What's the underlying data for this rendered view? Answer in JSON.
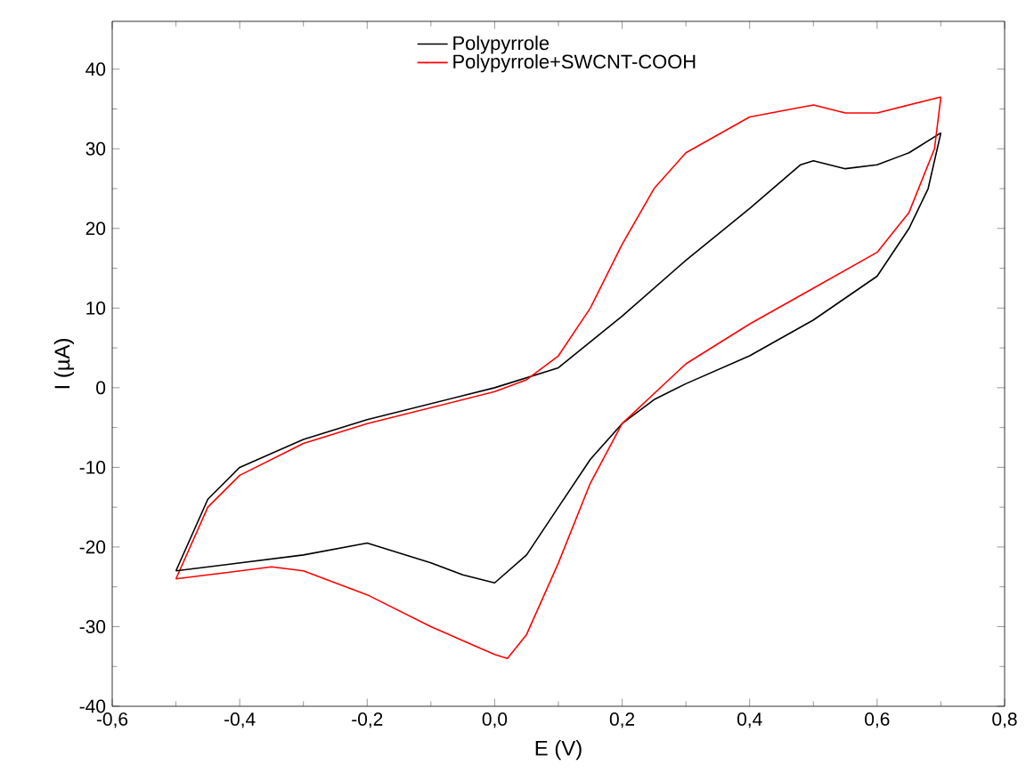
{
  "chart_data": {
    "type": "line",
    "xlabel": "E (V)",
    "ylabel": "I (µA)",
    "xlim": [
      -0.6,
      0.8
    ],
    "ylim": [
      -40,
      46
    ],
    "xticks": [
      {
        "value": -0.6,
        "label": "-0,6"
      },
      {
        "value": -0.4,
        "label": "-0,4"
      },
      {
        "value": -0.2,
        "label": "-0,2"
      },
      {
        "value": 0,
        "label": "0,0"
      },
      {
        "value": 0.2,
        "label": "0,2"
      },
      {
        "value": 0.4,
        "label": "0,4"
      },
      {
        "value": 0.6,
        "label": "0,6"
      },
      {
        "value": 0.8,
        "label": "0,8"
      }
    ],
    "yticks": [
      -40,
      -30,
      -20,
      -10,
      0,
      10,
      20,
      30,
      40
    ],
    "legend": "top",
    "series": [
      {
        "name": "Polypyrrole",
        "color": "#000000",
        "x": [
          -0.5,
          -0.45,
          -0.4,
          -0.3,
          -0.2,
          -0.1,
          0,
          0.1,
          0.2,
          0.3,
          0.4,
          0.48,
          0.5,
          0.55,
          0.6,
          0.65,
          0.7
        ],
        "values": [
          -23,
          -14,
          -10,
          -6.5,
          -4,
          -2,
          0,
          2.5,
          9,
          16,
          22.5,
          28,
          28.5,
          27.5,
          28,
          29.5,
          32
        ]
      },
      {
        "name": "Polypyrrole+SWCNT-COOH",
        "color": "#ff0000",
        "x": [
          -0.5,
          -0.45,
          -0.4,
          -0.3,
          -0.2,
          -0.1,
          0,
          0.05,
          0.1,
          0.15,
          0.2,
          0.25,
          0.3,
          0.4,
          0.5,
          0.55,
          0.6,
          0.7
        ],
        "values": [
          -24,
          -15,
          -11,
          -7,
          -4.5,
          -2.5,
          -0.5,
          1,
          4,
          10,
          18,
          25,
          29.5,
          34,
          35.5,
          34.5,
          34.5,
          36.5
        ]
      },
      {
        "color": "#000000",
        "x": [
          0.7,
          0.68,
          0.65,
          0.6,
          0.5,
          0.4,
          0.3,
          0.25,
          0.2,
          0.15,
          0.1,
          0.05,
          0,
          -0.05,
          -0.1,
          -0.2,
          -0.3,
          -0.4,
          -0.5
        ],
        "values": [
          32,
          25,
          20,
          14,
          8.5,
          4,
          0.5,
          -1.5,
          -4.5,
          -9,
          -15,
          -21,
          -24.5,
          -23.5,
          -22,
          -19.5,
          -21,
          -22,
          -23
        ]
      },
      {
        "color": "#ff0000",
        "x": [
          0.7,
          0.69,
          0.65,
          0.6,
          0.5,
          0.4,
          0.3,
          0.2,
          0.15,
          0.1,
          0.05,
          0.02,
          0,
          -0.1,
          -0.2,
          -0.3,
          -0.35,
          -0.45,
          -0.5
        ],
        "values": [
          36.5,
          30,
          22,
          17,
          12.5,
          8,
          3,
          -4.5,
          -12,
          -22,
          -31,
          -34,
          -33.5,
          -30,
          -26,
          -23,
          -22.5,
          -23.5,
          -24
        ]
      }
    ]
  }
}
